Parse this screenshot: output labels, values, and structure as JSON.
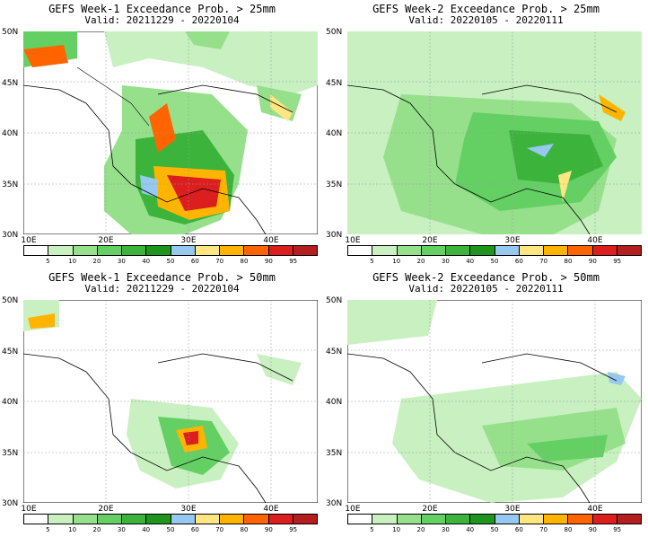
{
  "colorbar": {
    "labels": [
      "5",
      "10",
      "20",
      "30",
      "40",
      "50",
      "60",
      "70",
      "80",
      "90",
      "95"
    ],
    "colors": [
      "#ffffff",
      "#c8f0c0",
      "#96e08c",
      "#64d064",
      "#3cb43c",
      "#1e961e",
      "#96c8f0",
      "#ffe680",
      "#ffb400",
      "#ff6400",
      "#dc1e1e",
      "#b41e1e"
    ]
  },
  "axes": {
    "lat_labels": [
      "50N",
      "45N",
      "40N",
      "35N",
      "30N"
    ],
    "lon_labels": [
      "10E",
      "20E",
      "30E",
      "40E"
    ]
  },
  "panels": [
    {
      "title": "GEFS Week-1 Exceedance Prob. > 25mm",
      "valid": "Valid: 20211229 - 20220104"
    },
    {
      "title": "GEFS Week-2 Exceedance Prob. > 25mm",
      "valid": "Valid: 20220105 - 20220111"
    },
    {
      "title": "GEFS Week-1 Exceedance Prob. > 50mm",
      "valid": "Valid: 20211229 - 20220104"
    },
    {
      "title": "GEFS Week-2 Exceedance Prob. > 50mm",
      "valid": "Valid: 20220105 - 20220111"
    }
  ]
}
